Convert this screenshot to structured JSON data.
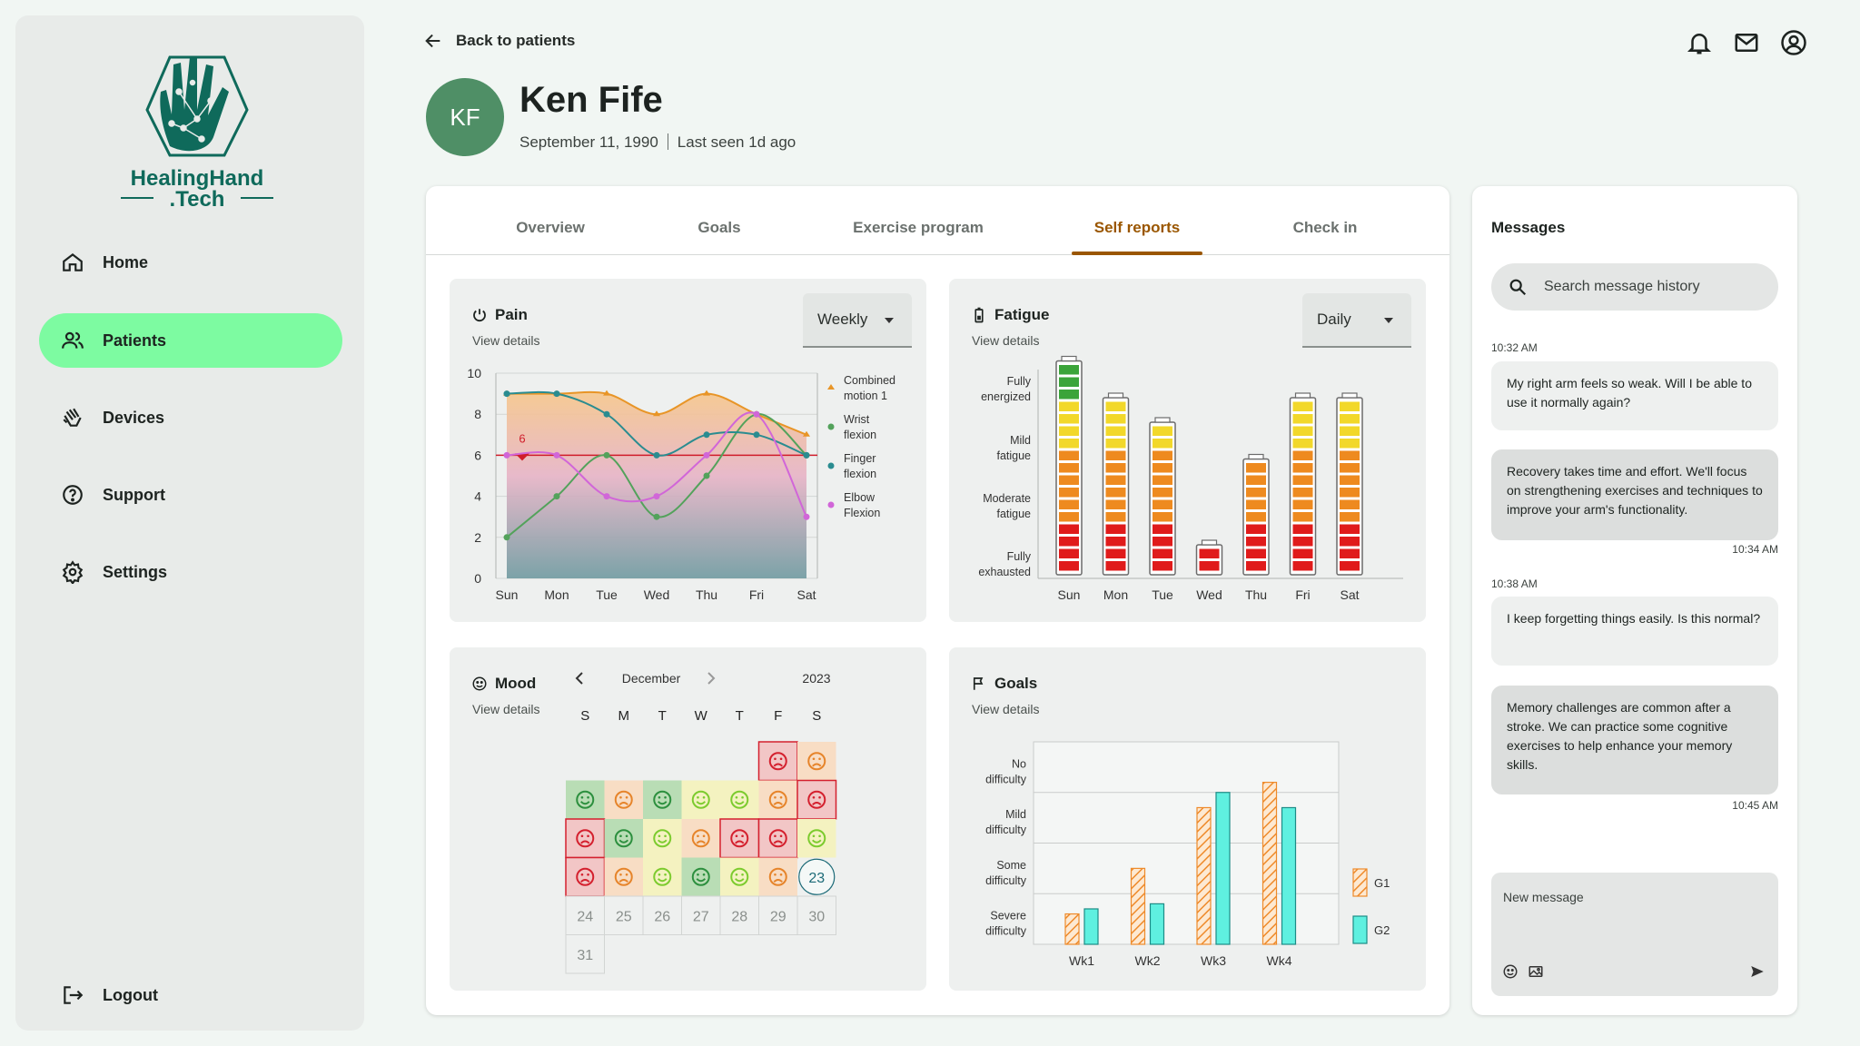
{
  "brand": {
    "line1": "HealingHand",
    "line2": ".Tech"
  },
  "nav": {
    "home": "Home",
    "patients": "Patients",
    "devices": "Devices",
    "support": "Support",
    "settings": "Settings",
    "logout": "Logout"
  },
  "header": {
    "back": "Back to patients"
  },
  "patient": {
    "initials": "KF",
    "name": "Ken Fife",
    "dob": "September 11, 1990",
    "last_seen": "Last seen 1d ago"
  },
  "tabs": [
    "Overview",
    "Goals",
    "Exercise program",
    "Self reports",
    "Check in"
  ],
  "active_tab": "Self reports",
  "pain": {
    "title": "Pain",
    "view": "View details",
    "period": "Weekly",
    "chart_data": {
      "type": "line",
      "categories": [
        "Sun",
        "Mon",
        "Tue",
        "Wed",
        "Thu",
        "Fri",
        "Sat"
      ],
      "ylim": [
        0,
        10
      ],
      "yticks": [
        "0",
        "2",
        "4",
        "6",
        "8",
        "10"
      ],
      "threshold": {
        "value": 6,
        "label": "6"
      },
      "series": [
        {
          "name": "Combined motion 1",
          "color": "#e89527",
          "values": [
            9,
            9,
            9,
            8,
            9,
            8,
            7
          ]
        },
        {
          "name": "Wrist flexion",
          "color": "#53a25b",
          "values": [
            2,
            4,
            6,
            3,
            5,
            8,
            6
          ]
        },
        {
          "name": "Finger flexion",
          "color": "#2a8c90",
          "values": [
            9,
            9,
            8,
            6,
            7,
            7,
            6
          ]
        },
        {
          "name": "Elbow Flexion",
          "color": "#d166d8",
          "values": [
            6,
            6,
            4,
            4,
            6,
            8,
            3
          ]
        }
      ],
      "legend": [
        "Combined",
        "motion 1",
        "Wrist",
        "flexion",
        "Finger",
        "flexion",
        "Elbow",
        "Flexion"
      ]
    }
  },
  "fatigue": {
    "title": "Fatigue",
    "view": "View details",
    "period": "Daily",
    "chart_data": {
      "type": "bar",
      "categories": [
        "Sun",
        "Mon",
        "Tue",
        "Wed",
        "Thu",
        "Fri",
        "Sat"
      ],
      "values": [
        17,
        14,
        12,
        2,
        9,
        14,
        14
      ],
      "max": 17,
      "levels": [
        "Fully",
        "energized",
        "Mild",
        "fatigue",
        "Moderate",
        "fatigue",
        "Fully",
        "exhausted"
      ]
    }
  },
  "mood": {
    "title": "Mood",
    "view": "View details",
    "month": "December",
    "year": "2023",
    "weekdays": [
      "S",
      "M",
      "T",
      "W",
      "T",
      "F",
      "S"
    ],
    "today": "23",
    "future_days": [
      "24",
      "25",
      "26",
      "27",
      "28",
      "29",
      "30",
      "31"
    ],
    "days": [
      {
        "d": 1,
        "m": "very-sad"
      },
      {
        "d": 2,
        "m": "sad"
      },
      {
        "d": 3,
        "m": "very-happy"
      },
      {
        "d": 4,
        "m": "sad"
      },
      {
        "d": 5,
        "m": "very-happy"
      },
      {
        "d": 6,
        "m": "happy"
      },
      {
        "d": 7,
        "m": "happy"
      },
      {
        "d": 8,
        "m": "sad"
      },
      {
        "d": 9,
        "m": "very-sad"
      },
      {
        "d": 10,
        "m": "very-sad"
      },
      {
        "d": 11,
        "m": "very-happy"
      },
      {
        "d": 12,
        "m": "happy"
      },
      {
        "d": 13,
        "m": "sad"
      },
      {
        "d": 14,
        "m": "very-sad"
      },
      {
        "d": 15,
        "m": "very-sad"
      },
      {
        "d": 16,
        "m": "happy"
      },
      {
        "d": 17,
        "m": "very-sad"
      },
      {
        "d": 18,
        "m": "sad"
      },
      {
        "d": 19,
        "m": "happy"
      },
      {
        "d": 20,
        "m": "very-happy"
      },
      {
        "d": 21,
        "m": "happy"
      },
      {
        "d": 22,
        "m": "sad"
      }
    ]
  },
  "goals": {
    "title": "Goals",
    "view": "View details",
    "chart_data": {
      "type": "bar",
      "categories": [
        "Wk1",
        "Wk2",
        "Wk3",
        "Wk4"
      ],
      "ylevels": [
        "No",
        "difficulty",
        "Mild",
        "difficulty",
        "Some",
        "difficulty",
        "Severe",
        "difficulty"
      ],
      "ylim": [
        0,
        4
      ],
      "series": [
        {
          "name": "G1",
          "color": "#f0a050",
          "values": [
            0.6,
            1.5,
            2.7,
            3.2
          ]
        },
        {
          "name": "G2",
          "color": "#5ff0e0",
          "values": [
            0.7,
            0.8,
            3.0,
            2.7
          ]
        }
      ]
    }
  },
  "messages": {
    "title": "Messages",
    "search_placeholder": "Search message history",
    "items": [
      {
        "time": "10:32 AM",
        "text": "My right arm feels so weak. Will I be able to use it normally again?"
      },
      {
        "time": "10:34 AM",
        "text": "Recovery takes time and effort. We'll focus on strengthening exercises and techniques to improve your arm's functionality."
      },
      {
        "time": "10:38 AM",
        "text": "I keep forgetting things easily. Is this normal?"
      },
      {
        "time": "10:45 AM",
        "text": "Memory challenges are common after a stroke. We can practice some cognitive exercises to help enhance your memory skills."
      }
    ],
    "new_placeholder": "New message"
  }
}
